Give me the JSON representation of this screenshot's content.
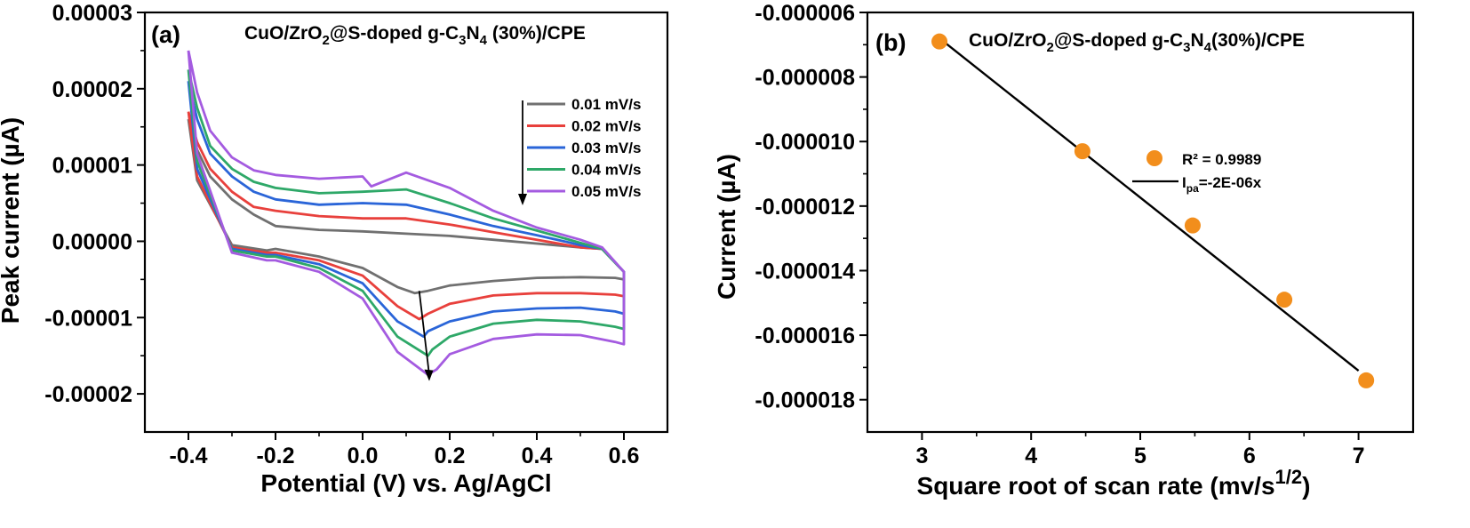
{
  "chart_data": [
    {
      "type": "line",
      "panel_label": "(a)",
      "title": "CuO/ZrO2@S-doped g-C3N4 (30%)/CPE",
      "title_parts": {
        "a": "CuO/ZrO",
        "b": "2",
        "c": "@S-doped g-C",
        "d": "3",
        "e": "N",
        "f": "4",
        "g": " (30%)/CPE"
      },
      "xlabel": "Potential (V) vs. Ag/AgCl",
      "ylabel": "Peak current (µA)",
      "xlim": [
        -0.5,
        0.7
      ],
      "ylim": [
        -2.5e-05,
        3e-05
      ],
      "xticks": [
        -0.4,
        -0.2,
        0.0,
        0.2,
        0.4,
        0.6
      ],
      "xtick_labels": [
        "-0.4",
        "-0.2",
        "0.0",
        "0.2",
        "0.4",
        "0.6"
      ],
      "yticks": [
        -2e-05,
        -1e-05,
        0.0,
        1e-05,
        2e-05,
        3e-05
      ],
      "ytick_labels": [
        "-0.00002",
        "-0.00001",
        "0.00000",
        "0.00001",
        "0.00002",
        "0.00003"
      ],
      "legend_position": "right",
      "series": [
        {
          "name": "0.01 mV/s",
          "color": "#707070",
          "x": [
            -0.4,
            -0.38,
            -0.35,
            -0.3,
            -0.25,
            -0.2,
            -0.1,
            0.0,
            0.1,
            0.2,
            0.3,
            0.4,
            0.5,
            0.55,
            0.6,
            0.6,
            0.58,
            0.5,
            0.4,
            0.3,
            0.2,
            0.15,
            0.12,
            0.08,
            0.0,
            -0.1,
            -0.2,
            -0.22,
            -0.3,
            -0.38,
            -0.4
          ],
          "y": [
            1.6e-05,
            1.2e-05,
            8.5e-06,
            5.5e-06,
            3.5e-06,
            2e-06,
            1.5e-06,
            1.3e-06,
            1e-06,
            7e-07,
            2e-07,
            -3e-07,
            -8e-07,
            -1e-06,
            -4e-06,
            -5e-06,
            -4.8e-06,
            -4.7e-06,
            -4.8e-06,
            -5.2e-06,
            -5.8e-06,
            -6.5e-06,
            -6.8e-06,
            -6e-06,
            -3.5e-06,
            -2e-06,
            -1e-06,
            -1.2e-06,
            -5e-07,
            8e-06,
            1.6e-05
          ]
        },
        {
          "name": "0.02 mV/s",
          "color": "#e8403c",
          "x": [
            -0.4,
            -0.38,
            -0.35,
            -0.3,
            -0.25,
            -0.2,
            -0.1,
            0.0,
            0.1,
            0.2,
            0.3,
            0.4,
            0.5,
            0.55,
            0.6,
            0.6,
            0.58,
            0.5,
            0.4,
            0.3,
            0.2,
            0.15,
            0.13,
            0.08,
            0.0,
            -0.1,
            -0.2,
            -0.22,
            -0.3,
            -0.38,
            -0.4
          ],
          "y": [
            1.7e-05,
            1.3e-05,
            9.5e-06,
            6.5e-06,
            4.5e-06,
            4e-06,
            3.3e-06,
            3e-06,
            3e-06,
            2.2e-06,
            1.2e-06,
            2e-07,
            -8e-07,
            -1e-06,
            -4e-06,
            -7.2e-06,
            -7e-06,
            -6.8e-06,
            -6.8e-06,
            -7.1e-06,
            -8.2e-06,
            -9.5e-06,
            -1.02e-05,
            -8.5e-06,
            -4.5e-06,
            -2.5e-06,
            -1.5e-06,
            -1.5e-06,
            -8e-07,
            8.5e-06,
            1.7e-05
          ]
        },
        {
          "name": "0.03 mV/s",
          "color": "#2a65d8",
          "x": [
            -0.4,
            -0.38,
            -0.35,
            -0.3,
            -0.25,
            -0.2,
            -0.1,
            0.0,
            0.1,
            0.2,
            0.3,
            0.4,
            0.5,
            0.55,
            0.6,
            0.6,
            0.58,
            0.5,
            0.4,
            0.3,
            0.2,
            0.15,
            0.14,
            0.08,
            0.0,
            -0.1,
            -0.2,
            -0.22,
            -0.3,
            -0.38,
            -0.4
          ],
          "y": [
            2.1e-05,
            1.6e-05,
            1.15e-05,
            8.5e-06,
            6.5e-06,
            5.5e-06,
            4.8e-06,
            5e-06,
            4.8e-06,
            3.5e-06,
            2e-06,
            8e-07,
            -5e-07,
            -1e-06,
            -4e-06,
            -9.5e-06,
            -9.2e-06,
            -8.7e-06,
            -8.8e-06,
            -9.2e-06,
            -1.05e-05,
            -1.18e-05,
            -1.25e-05,
            -1.05e-05,
            -5.5e-06,
            -3e-06,
            -1.8e-06,
            -1.8e-06,
            -1e-06,
            9.5e-06,
            2.1e-05
          ]
        },
        {
          "name": "0.04 mV/s",
          "color": "#2ea868",
          "x": [
            -0.4,
            -0.38,
            -0.35,
            -0.3,
            -0.25,
            -0.2,
            -0.1,
            0.0,
            0.1,
            0.2,
            0.3,
            0.4,
            0.5,
            0.55,
            0.6,
            0.6,
            0.58,
            0.5,
            0.4,
            0.3,
            0.2,
            0.16,
            0.15,
            0.08,
            0.0,
            -0.1,
            -0.2,
            -0.22,
            -0.3,
            -0.38,
            -0.4
          ],
          "y": [
            2.25e-05,
            1.75e-05,
            1.25e-05,
            9.5e-06,
            7.8e-06,
            7e-06,
            6.3e-06,
            6.5e-06,
            6.8e-06,
            5e-06,
            3e-06,
            1.4e-06,
            -2e-07,
            -1e-06,
            -4e-06,
            -1.15e-05,
            -1.12e-05,
            -1.05e-05,
            -1.03e-05,
            -1.08e-05,
            -1.25e-05,
            -1.42e-05,
            -1.5e-05,
            -1.25e-05,
            -6.5e-06,
            -3.5e-06,
            -2e-06,
            -2e-06,
            -1.2e-06,
            1.05e-05,
            2.25e-05
          ]
        },
        {
          "name": "0.05 mV/s",
          "color": "#a45be0",
          "x": [
            -0.4,
            -0.38,
            -0.35,
            -0.3,
            -0.25,
            -0.2,
            -0.1,
            0.0,
            0.02,
            0.1,
            0.2,
            0.3,
            0.4,
            0.5,
            0.55,
            0.6,
            0.6,
            0.58,
            0.5,
            0.4,
            0.3,
            0.2,
            0.17,
            0.15,
            0.08,
            0.0,
            -0.1,
            -0.2,
            -0.22,
            -0.3,
            -0.38,
            -0.4
          ],
          "y": [
            2.5e-05,
            1.95e-05,
            1.45e-05,
            1.1e-05,
            9.3e-06,
            8.7e-06,
            8.2e-06,
            8.5e-06,
            7.2e-06,
            9e-06,
            7e-06,
            4e-06,
            1.8e-06,
            2e-07,
            -8e-07,
            -4e-06,
            -1.35e-05,
            -1.32e-05,
            -1.23e-05,
            -1.22e-05,
            -1.28e-05,
            -1.48e-05,
            -1.68e-05,
            -1.75e-05,
            -1.45e-05,
            -7.5e-06,
            -4e-06,
            -2.5e-06,
            -2.5e-06,
            -1.5e-06,
            1.15e-05,
            2.5e-05
          ]
        }
      ],
      "annotations": [
        {
          "type": "arrow",
          "from": [
            0.13,
            -6.5e-06
          ],
          "to": [
            0.152,
            -1.82e-05
          ],
          "color": "#000000"
        },
        {
          "type": "arrow",
          "note": "vertical arrow beside legend",
          "color": "#000000"
        }
      ]
    },
    {
      "type": "scatter",
      "panel_label": "(b)",
      "title": "CuO/ZrO2@S-doped g-C3N4(30%)/CPE",
      "title_parts": {
        "a": "CuO/ZrO",
        "b": "2",
        "c": "@S-doped g-C",
        "d": "3",
        "e": "N",
        "f": "4",
        "g": "(30%)/CPE"
      },
      "xlabel": "Square root of scan rate (mv/s",
      "xlabel_sup": "1/2",
      "xlabel_end": ")",
      "ylabel": "Current (µA)",
      "xlim": [
        2.5,
        7.5
      ],
      "ylim": [
        -1.9e-05,
        -6e-06
      ],
      "xticks": [
        3,
        4,
        5,
        6,
        7
      ],
      "xtick_labels": [
        "3",
        "4",
        "5",
        "6",
        "7"
      ],
      "yticks": [
        -6e-06,
        -8e-06,
        -1e-05,
        -1.2e-05,
        -1.4e-05,
        -1.6e-05,
        -1.8e-05
      ],
      "ytick_labels": [
        "-0.000006",
        "-0.000008",
        "-0.000010",
        "-0.000012",
        "-0.000014",
        "-0.000016",
        "-0.000018"
      ],
      "marker_color": "#f28e1c",
      "points": {
        "x": [
          3.16,
          4.47,
          5.48,
          6.32,
          7.07
        ],
        "y": [
          -6.9e-06,
          -1.03e-05,
          -1.26e-05,
          -1.49e-05,
          -1.74e-05
        ]
      },
      "fit_line": {
        "x": [
          3.16,
          7.0
        ],
        "y": [
          -6.8e-06,
          -1.71e-05
        ],
        "color": "#000000"
      },
      "legend": {
        "r2_text": "R² = 0.9989",
        "fit_label_prefix": "I",
        "fit_label_sub": "pa",
        "fit_label_rest": "=-2E-06x",
        "position": "center-right"
      }
    }
  ]
}
